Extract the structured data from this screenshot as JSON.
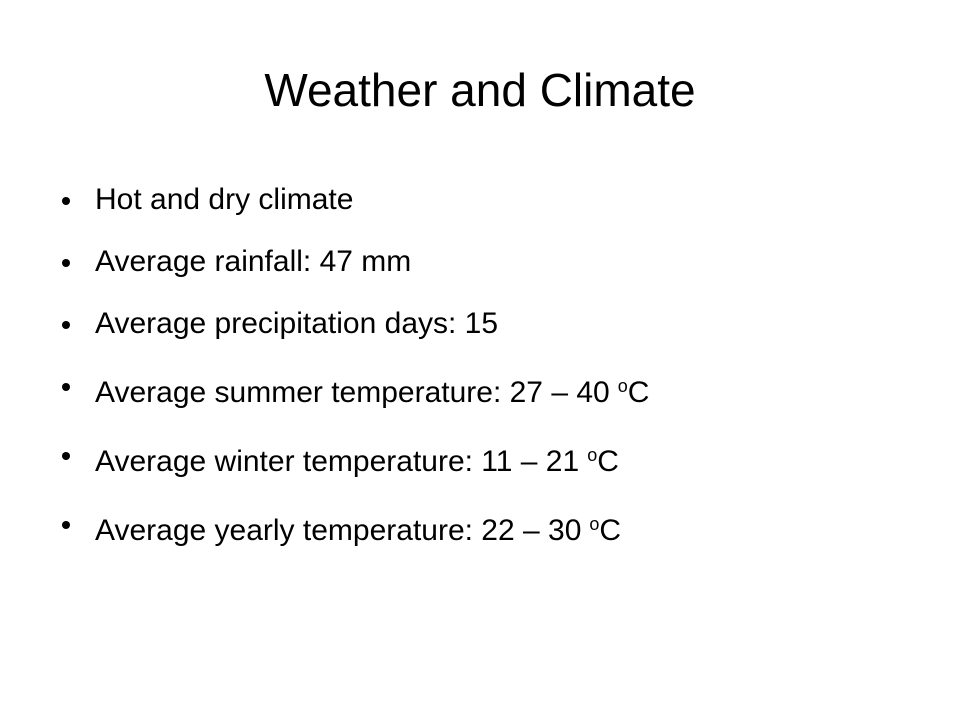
{
  "title": "Weather and Climate",
  "bullets": [
    {
      "text": "Hot and dry climate"
    },
    {
      "text": "Average rainfall: 47 mm"
    },
    {
      "text": "Average precipitation days: 15"
    },
    {
      "text": "Average summer temperature: 27 – 40",
      "sup": "o",
      "after": "C"
    },
    {
      "text": "Average winter temperature: 11 – 21",
      "sup": "o",
      "after": "C"
    },
    {
      "text": "Average yearly temperature: 22 – 30",
      "sup": "o",
      "after": "C"
    }
  ]
}
